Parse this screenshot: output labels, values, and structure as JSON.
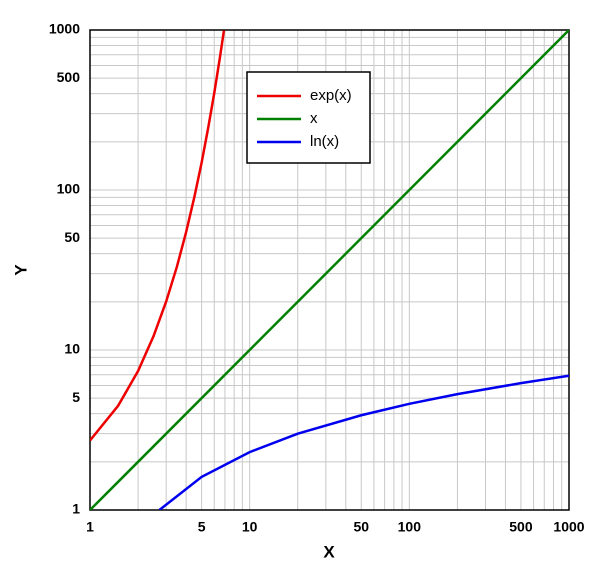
{
  "chart_data": {
    "type": "line",
    "xlabel": "X",
    "ylabel": "Y",
    "xscale": "log",
    "yscale": "log",
    "grid": true,
    "legend": "upper-center",
    "xlim": [
      1,
      1000
    ],
    "ylim": [
      1,
      1000
    ],
    "xticks": [
      1,
      5,
      10,
      50,
      100,
      500,
      1000
    ],
    "yticks": [
      1,
      5,
      10,
      50,
      100,
      500,
      1000
    ],
    "xminorticks": [
      2,
      3,
      4,
      6,
      7,
      8,
      9,
      20,
      30,
      40,
      60,
      70,
      80,
      90,
      200,
      300,
      400,
      600,
      700,
      800,
      900
    ],
    "yminorticks": [
      2,
      3,
      4,
      6,
      7,
      8,
      9,
      20,
      30,
      40,
      60,
      70,
      80,
      90,
      200,
      300,
      400,
      600,
      700,
      800,
      900
    ],
    "series": [
      {
        "name": "exp(x)",
        "color": "#ee0000",
        "x": [
          1,
          1.5,
          2,
          2.5,
          3,
          3.5,
          4,
          4.5,
          5,
          5.5,
          6,
          6.5,
          6.9
        ],
        "values": [
          2.72,
          4.48,
          7.39,
          12.2,
          20.1,
          33.1,
          54.6,
          90,
          148,
          245,
          403,
          665,
          992
        ]
      },
      {
        "name": "x",
        "color": "#008000",
        "x": [
          1,
          1000
        ],
        "values": [
          1,
          1000
        ]
      },
      {
        "name": "ln(x)",
        "color": "#0000ee",
        "x": [
          2.72,
          5,
          10,
          20,
          50,
          100,
          200,
          500,
          1000
        ],
        "values": [
          1,
          1.61,
          2.3,
          3,
          3.91,
          4.61,
          5.3,
          6.21,
          6.91
        ]
      }
    ]
  }
}
